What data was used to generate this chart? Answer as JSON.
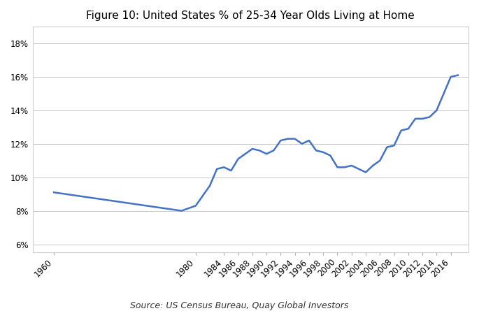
{
  "title": "Figure 10: United States % of 25-34 Year Olds Living at Home",
  "source": "Source: US Census Bureau, Quay Global Investors",
  "line_color": "#4472C4",
  "line_width": 1.8,
  "background_color": "#ffffff",
  "plot_bg_color": "#ffffff",
  "grid_color": "#c8c8c8",
  "ylim": [
    0.055,
    0.19
  ],
  "yticks": [
    0.06,
    0.08,
    0.1,
    0.12,
    0.14,
    0.16,
    0.18
  ],
  "years": [
    1960,
    1978,
    1980,
    1982,
    1983,
    1984,
    1985,
    1986,
    1987,
    1988,
    1989,
    1990,
    1991,
    1992,
    1993,
    1994,
    1995,
    1996,
    1997,
    1998,
    1999,
    2000,
    2001,
    2002,
    2003,
    2004,
    2005,
    2006,
    2007,
    2008,
    2009,
    2010,
    2011,
    2012,
    2013,
    2014,
    2015,
    2016,
    2017
  ],
  "values": [
    0.091,
    0.08,
    0.083,
    0.095,
    0.105,
    0.106,
    0.104,
    0.111,
    0.114,
    0.117,
    0.116,
    0.114,
    0.116,
    0.122,
    0.123,
    0.123,
    0.12,
    0.122,
    0.116,
    0.115,
    0.113,
    0.106,
    0.106,
    0.107,
    0.105,
    0.103,
    0.107,
    0.11,
    0.118,
    0.119,
    0.128,
    0.129,
    0.135,
    0.135,
    0.136,
    0.14,
    0.15,
    0.16,
    0.161
  ],
  "xlabel_shown": [
    "1960",
    "1980",
    "1984",
    "1986",
    "1988",
    "1990",
    "1992",
    "1994",
    "1996",
    "1998",
    "2000",
    "2002",
    "2004",
    "2006",
    "2008",
    "2010",
    "2012",
    "2014",
    "2016"
  ],
  "title_fontsize": 11,
  "axis_fontsize": 8.5,
  "source_fontsize": 9
}
